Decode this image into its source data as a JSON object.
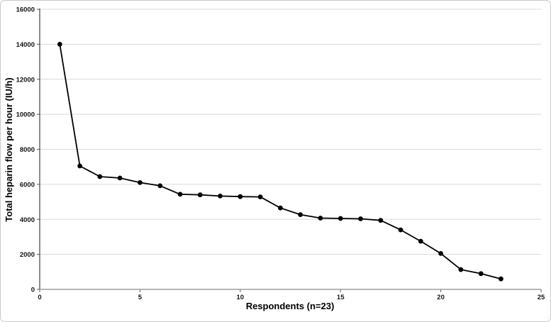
{
  "chart_data": {
    "type": "line",
    "title": "",
    "xlabel": "Respondents (n=23)",
    "ylabel": "Total heparin flow per hour (IU/h)",
    "x": [
      1,
      2,
      3,
      4,
      5,
      6,
      7,
      8,
      9,
      10,
      11,
      12,
      13,
      14,
      15,
      16,
      17,
      18,
      19,
      20,
      21,
      22,
      23
    ],
    "values": [
      14000,
      7050,
      6440,
      6360,
      6100,
      5920,
      5430,
      5400,
      5330,
      5300,
      5280,
      4650,
      4270,
      4070,
      4050,
      4030,
      3940,
      3400,
      2750,
      2050,
      1130,
      900,
      600
    ],
    "series_label": "Total heparin flow per hour",
    "xlim": [
      0,
      25
    ],
    "ylim": [
      0,
      16000
    ],
    "x_ticks": [
      0,
      5,
      10,
      15,
      20,
      25
    ],
    "y_ticks": [
      0,
      2000,
      4000,
      6000,
      8000,
      10000,
      12000,
      14000,
      16000
    ],
    "grid": "horizontal",
    "legend_position": "none",
    "marker": "filled-circle",
    "line_color": "#000000",
    "marker_color": "#000000",
    "grid_color": "#d9d9d9",
    "axis_color": "#595959",
    "background_color": "#ffffff",
    "border_color": "#c9c9c9"
  }
}
